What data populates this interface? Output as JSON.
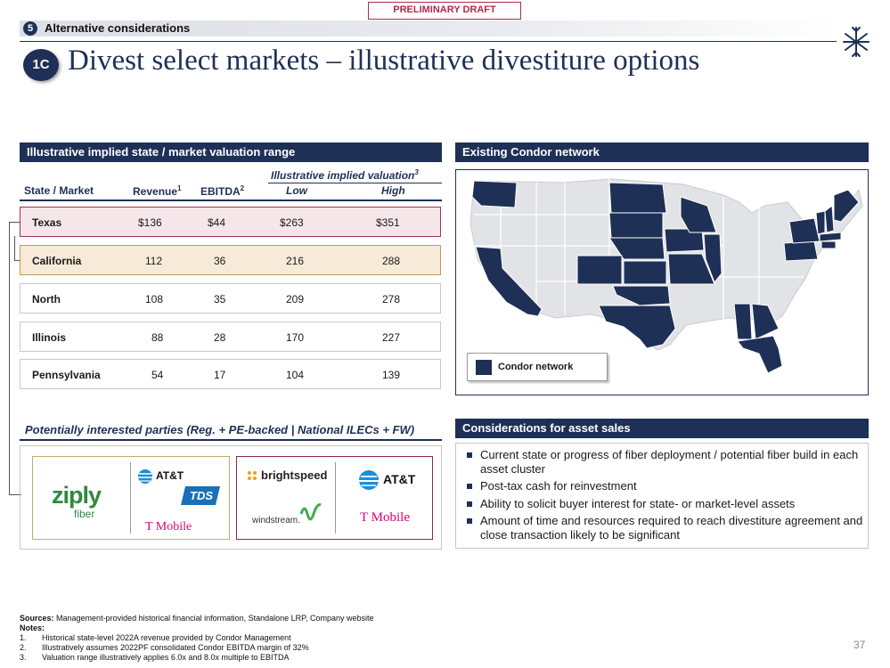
{
  "draft_label": "PRELIMINARY DRAFT",
  "section": {
    "number": "5",
    "label": "Alternative considerations"
  },
  "badge": "1C",
  "title": "Divest select markets – illustrative divestiture options",
  "valuation": {
    "header": "Illustrative implied state / market valuation range",
    "super_header": "Illustrative implied valuation",
    "super_header_note": "3",
    "columns": [
      {
        "label": "State / Market",
        "note": ""
      },
      {
        "label": "Revenue",
        "note": "1"
      },
      {
        "label": "EBITDA",
        "note": "2"
      },
      {
        "label": "Low",
        "note": ""
      },
      {
        "label": "High",
        "note": ""
      }
    ],
    "rows": [
      {
        "name": "Texas",
        "revenue": "$136",
        "ebitda": "$44",
        "low": "$263",
        "high": "$351"
      },
      {
        "name": "California",
        "revenue": "112",
        "ebitda": "36",
        "low": "216",
        "high": "288"
      },
      {
        "name": "North",
        "revenue": "108",
        "ebitda": "35",
        "low": "209",
        "high": "278"
      },
      {
        "name": "Illinois",
        "revenue": "88",
        "ebitda": "28",
        "low": "170",
        "high": "227"
      },
      {
        "name": "Pennsylvania",
        "revenue": "54",
        "ebitda": "17",
        "low": "104",
        "high": "139"
      }
    ]
  },
  "map_panel": {
    "header": "Existing Condor network",
    "legend": "Condor network"
  },
  "parties": {
    "label": "Potentially interested parties (Reg. + PE-backed | National ILECs + FW)",
    "regional": {
      "ziply": "ziply",
      "ziply_sub": "fiber",
      "att": "AT&T",
      "tds": "TDS",
      "tmobile": "T Mobile"
    },
    "national": {
      "brightspeed": "brightspeed",
      "windstream": "windstream.",
      "att": "AT&T",
      "tmobile": "T Mobile"
    }
  },
  "considerations": {
    "header": "Considerations for asset sales",
    "items": [
      "Current state or progress of fiber deployment / potential fiber build in each asset cluster",
      "Post-tax cash for reinvestment",
      "Ability to solicit buyer interest for state- or market-level assets",
      "Amount of time and resources required to reach divestiture agreement and close transaction likely to be significant"
    ]
  },
  "footer": {
    "sources_label": "Sources:",
    "sources_text": "Management-provided historical financial information, Standalone LRP, Company website",
    "notes_label": "Notes:",
    "notes": [
      {
        "num": "1.",
        "text": "Historical state-level 2022A revenue provided by Condor Management"
      },
      {
        "num": "2.",
        "text": "Illustratively assumes 2022PF consolidated Condor EBITDA margin of 32%"
      },
      {
        "num": "3.",
        "text": "Valuation range illustratively applies 6.0x and 8.0x multiple to EBITDA"
      }
    ]
  },
  "page_number": "37",
  "colors": {
    "navy": "#1f3057",
    "map_gray": "#e2e3e6",
    "texas_border": "#a23456",
    "california_border": "#c39a5c"
  }
}
